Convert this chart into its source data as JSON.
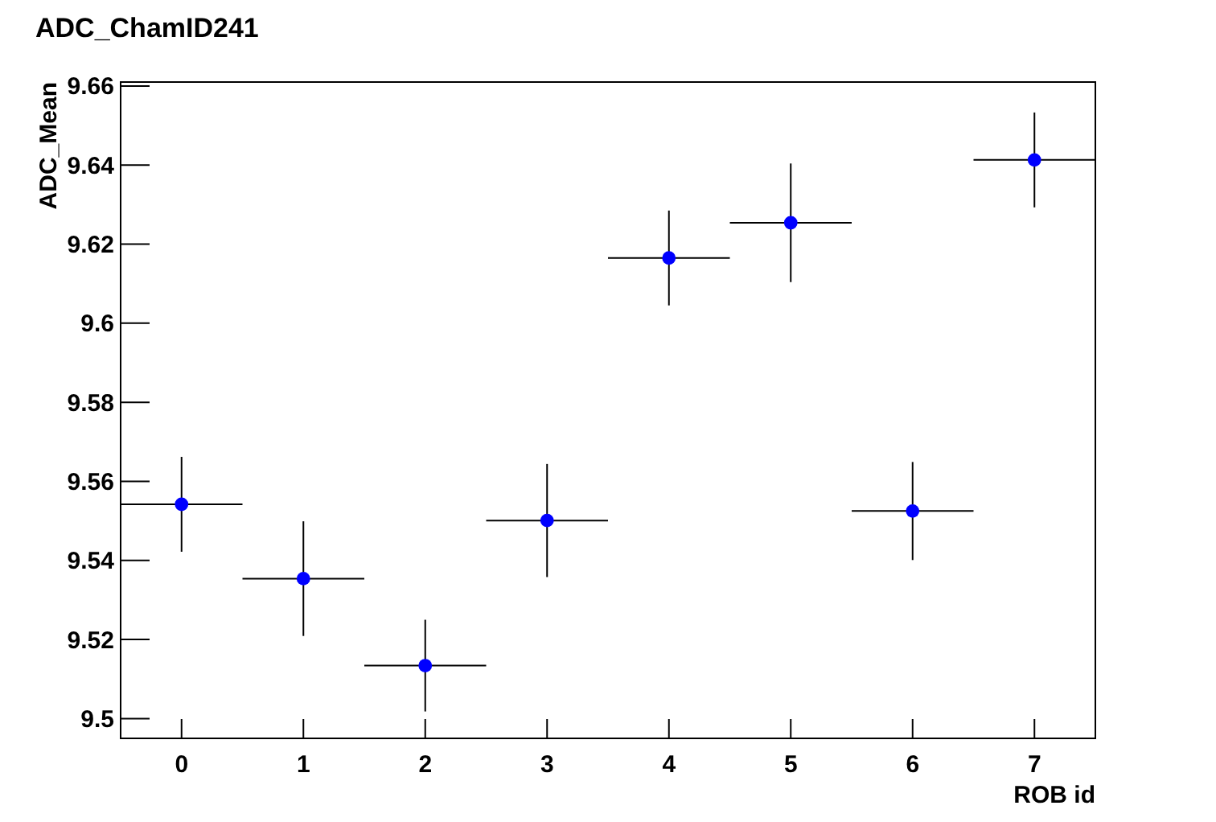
{
  "chart_data": {
    "type": "scatter",
    "title": "ADC_ChamID241",
    "xlabel": "ROB id",
    "ylabel": "ADC_Mean",
    "x": [
      0,
      1,
      2,
      3,
      4,
      5,
      6,
      7
    ],
    "series": [
      {
        "color": "#0000ff",
        "values": [
          9.5542,
          9.5354,
          9.5134,
          9.5501,
          9.6165,
          9.6254,
          9.5525,
          9.6413
        ],
        "errors": [
          0.012,
          0.0145,
          0.0116,
          0.0143,
          0.012,
          0.015,
          0.0124,
          0.012
        ],
        "xerrors": [
          0.5,
          0.5,
          0.5,
          0.5,
          0.5,
          0.5,
          0.5,
          0.5
        ]
      }
    ],
    "xlim": [
      -0.5,
      7.5
    ],
    "xticks": [
      0,
      1,
      2,
      3,
      4,
      5,
      6,
      7
    ],
    "ylim": [
      9.495,
      9.661
    ],
    "yticks": [
      9.5,
      9.52,
      9.54,
      9.56,
      9.58,
      9.6,
      9.62,
      9.64,
      9.66
    ],
    "marker": "circle",
    "grid": false
  }
}
